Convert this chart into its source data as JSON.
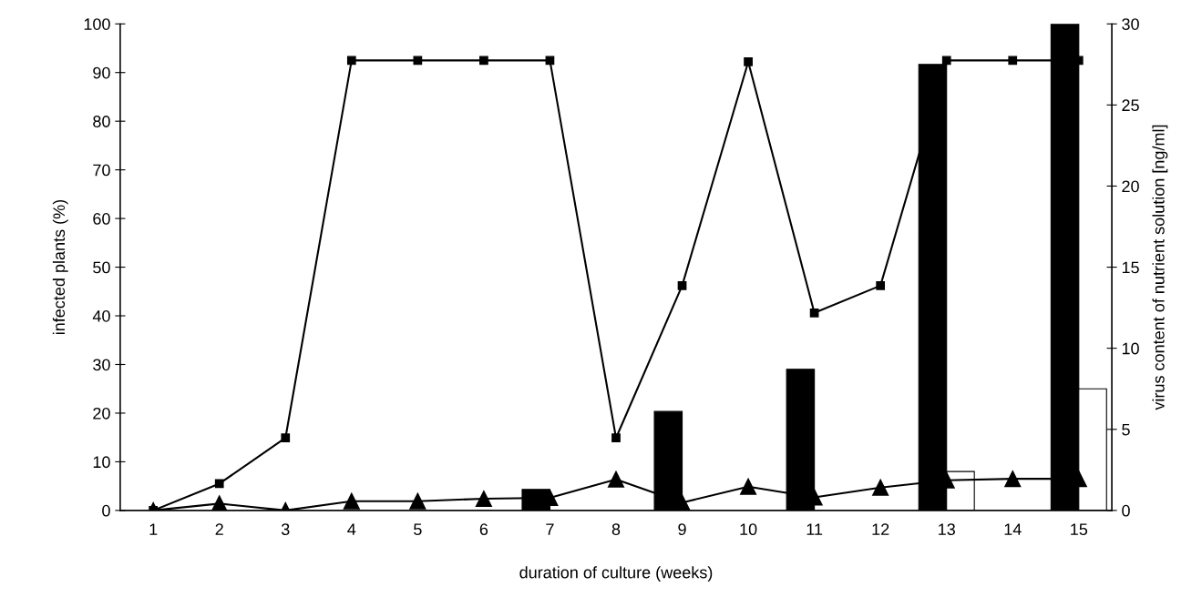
{
  "chart_data": {
    "type": "line",
    "categories": [
      "1",
      "2",
      "3",
      "4",
      "5",
      "6",
      "7",
      "8",
      "9",
      "10",
      "11",
      "12",
      "13",
      "14",
      "15"
    ],
    "xlabel": "duration of culture (weeks)",
    "ylabel": "infected plants (%)",
    "y2label": "virus content of nutrient solution [ng/ml]",
    "ylim": [
      0,
      100
    ],
    "yticks": [
      0,
      10,
      20,
      30,
      40,
      50,
      60,
      70,
      80,
      90,
      100
    ],
    "y2lim": [
      0,
      30
    ],
    "y2ticks": [
      0,
      5,
      10,
      15,
      20,
      25,
      30
    ],
    "grid": false,
    "legend": false,
    "line_style": "solid",
    "series": [
      {
        "type": "bar",
        "axis": "y2",
        "color": "#000000",
        "values": [
          null,
          null,
          null,
          null,
          null,
          null,
          1.3,
          null,
          6.1,
          null,
          8.7,
          null,
          27.5,
          null,
          30
        ]
      },
      {
        "type": "bar",
        "axis": "y2",
        "color": "#ffffff",
        "values": [
          null,
          null,
          null,
          null,
          null,
          null,
          null,
          null,
          null,
          null,
          null,
          null,
          2.4,
          null,
          7.5
        ]
      },
      {
        "marker": "square",
        "color": "#000000",
        "values": [
          0,
          5.5,
          14.9,
          92.5,
          92.5,
          92.5,
          92.5,
          14.9,
          46.2,
          92.2,
          40.6,
          46.2,
          92.5,
          92.5,
          92.5
        ]
      },
      {
        "marker": "triangle",
        "color": "#000000",
        "values": [
          0,
          1.4,
          0,
          1.9,
          1.9,
          2.4,
          2.6,
          6.4,
          1.6,
          4.9,
          2.7,
          4.7,
          6.2,
          6.5,
          6.5
        ]
      }
    ]
  }
}
